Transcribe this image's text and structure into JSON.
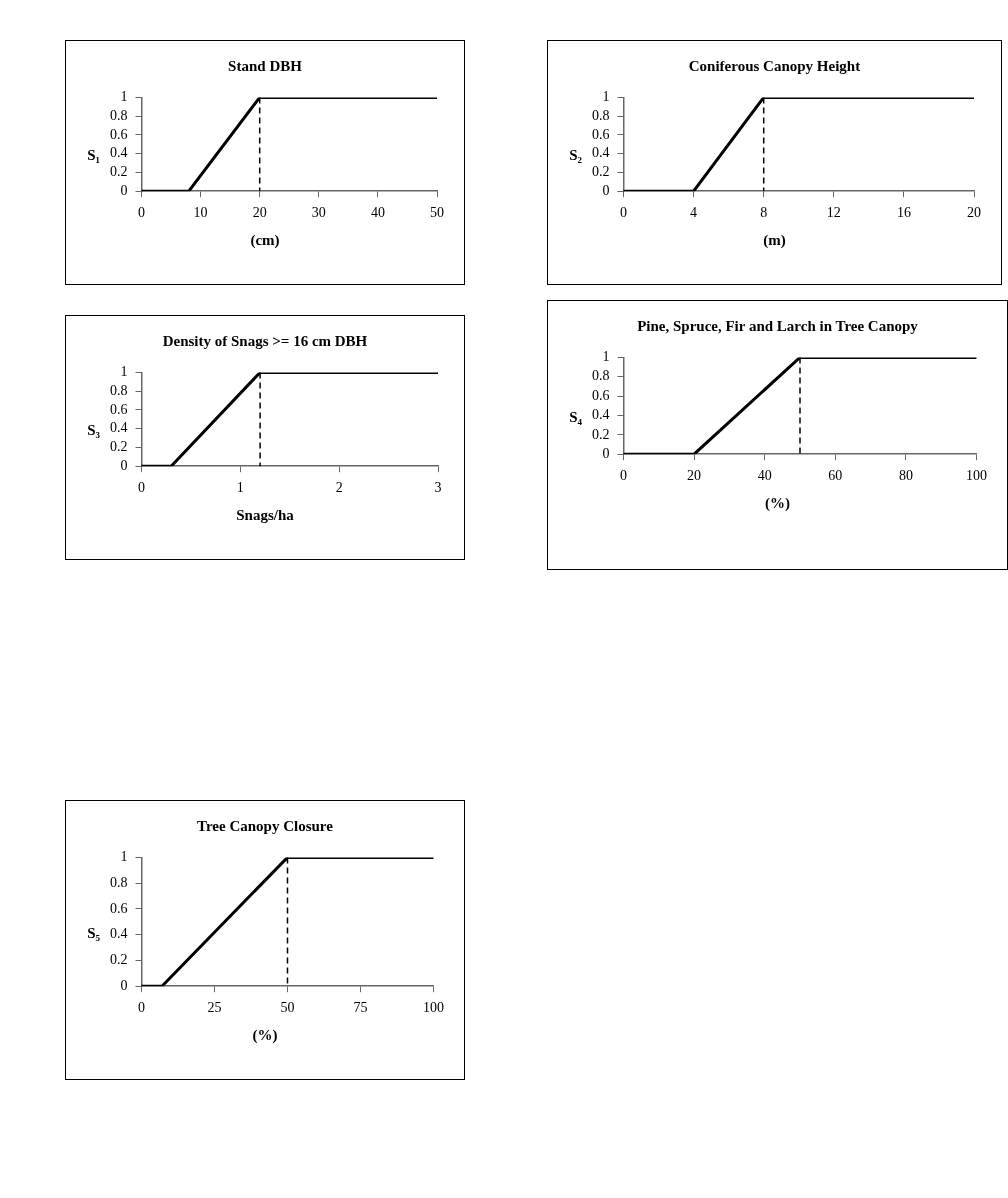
{
  "chart_data": [
    {
      "type": "line",
      "title": "Stand DBH",
      "xlabel": "(cm)",
      "ylabel": "S₁",
      "x": [
        0,
        8,
        20,
        50
      ],
      "values": [
        0,
        0,
        1,
        1
      ],
      "color": "#000000",
      "xlim": [
        0,
        50
      ],
      "xticks": [
        0,
        10,
        20,
        30,
        40,
        50
      ],
      "ylim": [
        0,
        1
      ],
      "yticks": [
        0,
        0.2,
        0.4,
        0.6,
        0.8,
        1
      ],
      "grid": false,
      "ref_lines": [
        {
          "axis": "x",
          "value": 20,
          "color": "#000000",
          "line_style": "dashed"
        }
      ]
    },
    {
      "type": "line",
      "title": "Coniferous Canopy Height",
      "xlabel": "(m)",
      "ylabel": "S₂",
      "x": [
        0,
        4,
        8,
        20
      ],
      "values": [
        0,
        0,
        1,
        1
      ],
      "color": "#000000",
      "xlim": [
        0,
        20
      ],
      "xticks": [
        0,
        4,
        8,
        12,
        16,
        20
      ],
      "ylim": [
        0,
        1
      ],
      "yticks": [
        0,
        0.2,
        0.4,
        0.6,
        0.8,
        1
      ],
      "grid": false,
      "ref_lines": [
        {
          "axis": "x",
          "value": 8,
          "color": "#000000",
          "line_style": "dashed"
        }
      ]
    },
    {
      "type": "line",
      "title": "Density of Snags >= 16 cm DBH",
      "xlabel": "Snags/ha",
      "ylabel": "S₃",
      "x": [
        0,
        0.3,
        1.2,
        3
      ],
      "values": [
        0,
        0,
        1,
        1
      ],
      "color": "#000000",
      "xlim": [
        0,
        3
      ],
      "xticks": [
        0,
        1,
        2,
        3
      ],
      "ylim": [
        0,
        1
      ],
      "yticks": [
        0,
        0.2,
        0.4,
        0.6,
        0.8,
        1
      ],
      "grid": false,
      "ref_lines": [
        {
          "axis": "x",
          "value": 1.2,
          "color": "#000000",
          "line_style": "dashed"
        }
      ]
    },
    {
      "type": "line",
      "title": "Pine, Spruce, Fir and Larch in Tree Canopy",
      "xlabel": "(%)",
      "ylabel": "S₄",
      "x": [
        0,
        20,
        50,
        100
      ],
      "values": [
        0,
        0,
        1,
        1
      ],
      "color": "#000000",
      "xlim": [
        0,
        100
      ],
      "xticks": [
        0,
        20,
        40,
        60,
        80,
        100
      ],
      "ylim": [
        0,
        1
      ],
      "yticks": [
        0,
        0.2,
        0.4,
        0.6,
        0.8,
        1
      ],
      "grid": false,
      "ref_lines": [
        {
          "axis": "x",
          "value": 50,
          "color": "#000000",
          "line_style": "dashed"
        }
      ]
    },
    {
      "type": "line",
      "title": "Tree Canopy Closure",
      "xlabel": "(%)",
      "ylabel": "S₅",
      "x": [
        0,
        7,
        50,
        100
      ],
      "values": [
        0,
        0,
        1,
        1
      ],
      "color": "#000000",
      "xlim": [
        0,
        100
      ],
      "xticks": [
        0,
        25,
        50,
        75,
        100
      ],
      "ylim": [
        0,
        1
      ],
      "yticks": [
        0,
        0.2,
        0.4,
        0.6,
        0.8,
        1
      ],
      "grid": false,
      "ref_lines": [
        {
          "axis": "x",
          "value": 50,
          "color": "#000000",
          "line_style": "dashed"
        }
      ]
    }
  ]
}
